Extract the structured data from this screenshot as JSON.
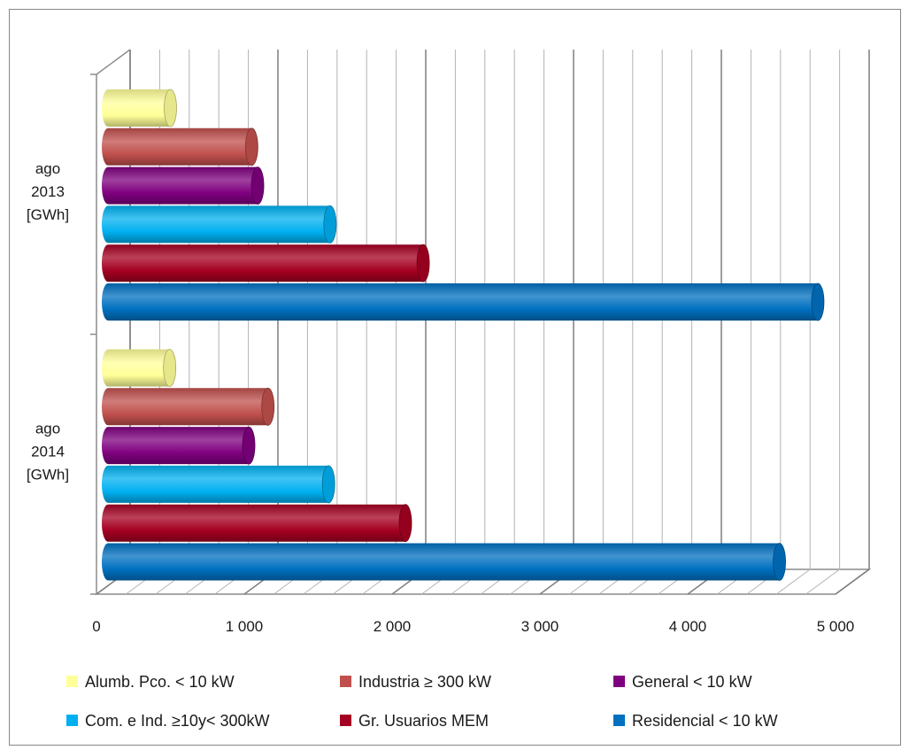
{
  "chart_data": {
    "type": "bar",
    "orientation": "horizontal",
    "style": "3d-cylinder",
    "categories": [
      [
        "ago",
        "2013",
        "[GWh]"
      ],
      [
        "ago",
        "2014",
        "[GWh]"
      ]
    ],
    "series": [
      {
        "name": "Alumb. Pco. < 10 kW",
        "color": "#FFFF99",
        "values": [
          500,
          495
        ]
      },
      {
        "name": "Industria ≥ 300 kW",
        "color": "#C0504D",
        "values": [
          1050,
          1160
        ]
      },
      {
        "name": "General < 10 kW",
        "color": "#7F007F",
        "values": [
          1090,
          1030
        ]
      },
      {
        "name": "Com. e Ind. ≥10y< 300kW",
        "color": "#00B0F0",
        "values": [
          1580,
          1570
        ]
      },
      {
        "name": "Gr. Usuarios MEM",
        "color": "#A50021",
        "values": [
          2210,
          2090
        ]
      },
      {
        "name": "Residencial < 10 kW",
        "color": "#0070C0",
        "values": [
          4880,
          4620
        ]
      }
    ],
    "x_ticks": [
      "0",
      "1 000",
      "2 000",
      "3 000",
      "4 000",
      "5 000"
    ],
    "xlim": [
      0,
      5000
    ],
    "gridlines": "minor vertical every 200, major every 1000",
    "legend_position": "bottom"
  }
}
